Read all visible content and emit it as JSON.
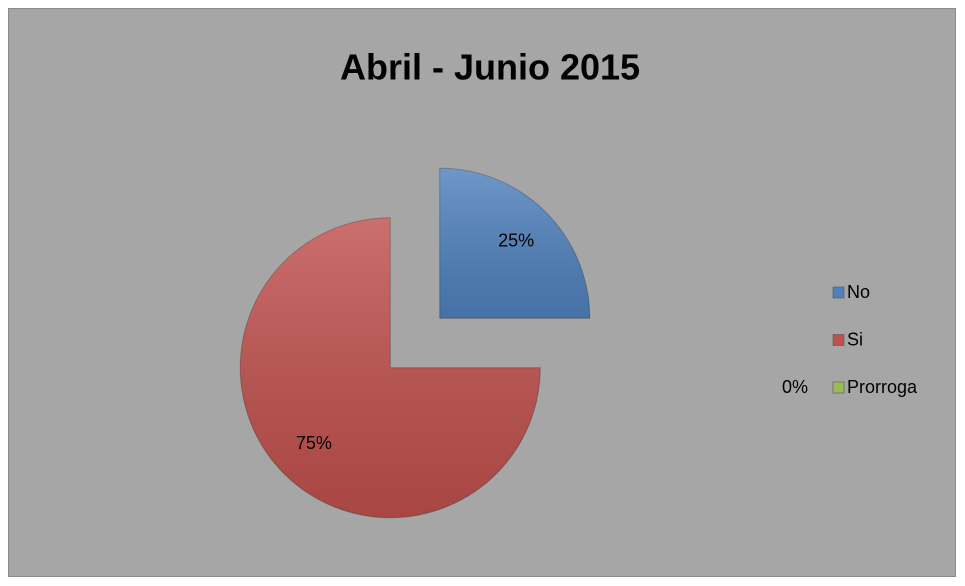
{
  "chart_data": {
    "type": "pie",
    "title": "Abril - Junio 2015",
    "categories": [
      "No",
      "Si",
      "Prorroga"
    ],
    "values": [
      25,
      75,
      0
    ],
    "value_labels": [
      "25%",
      "75%",
      "0%"
    ],
    "colors": [
      "#4f81bd",
      "#c0504d",
      "#9bbb59"
    ],
    "legend": "right"
  }
}
